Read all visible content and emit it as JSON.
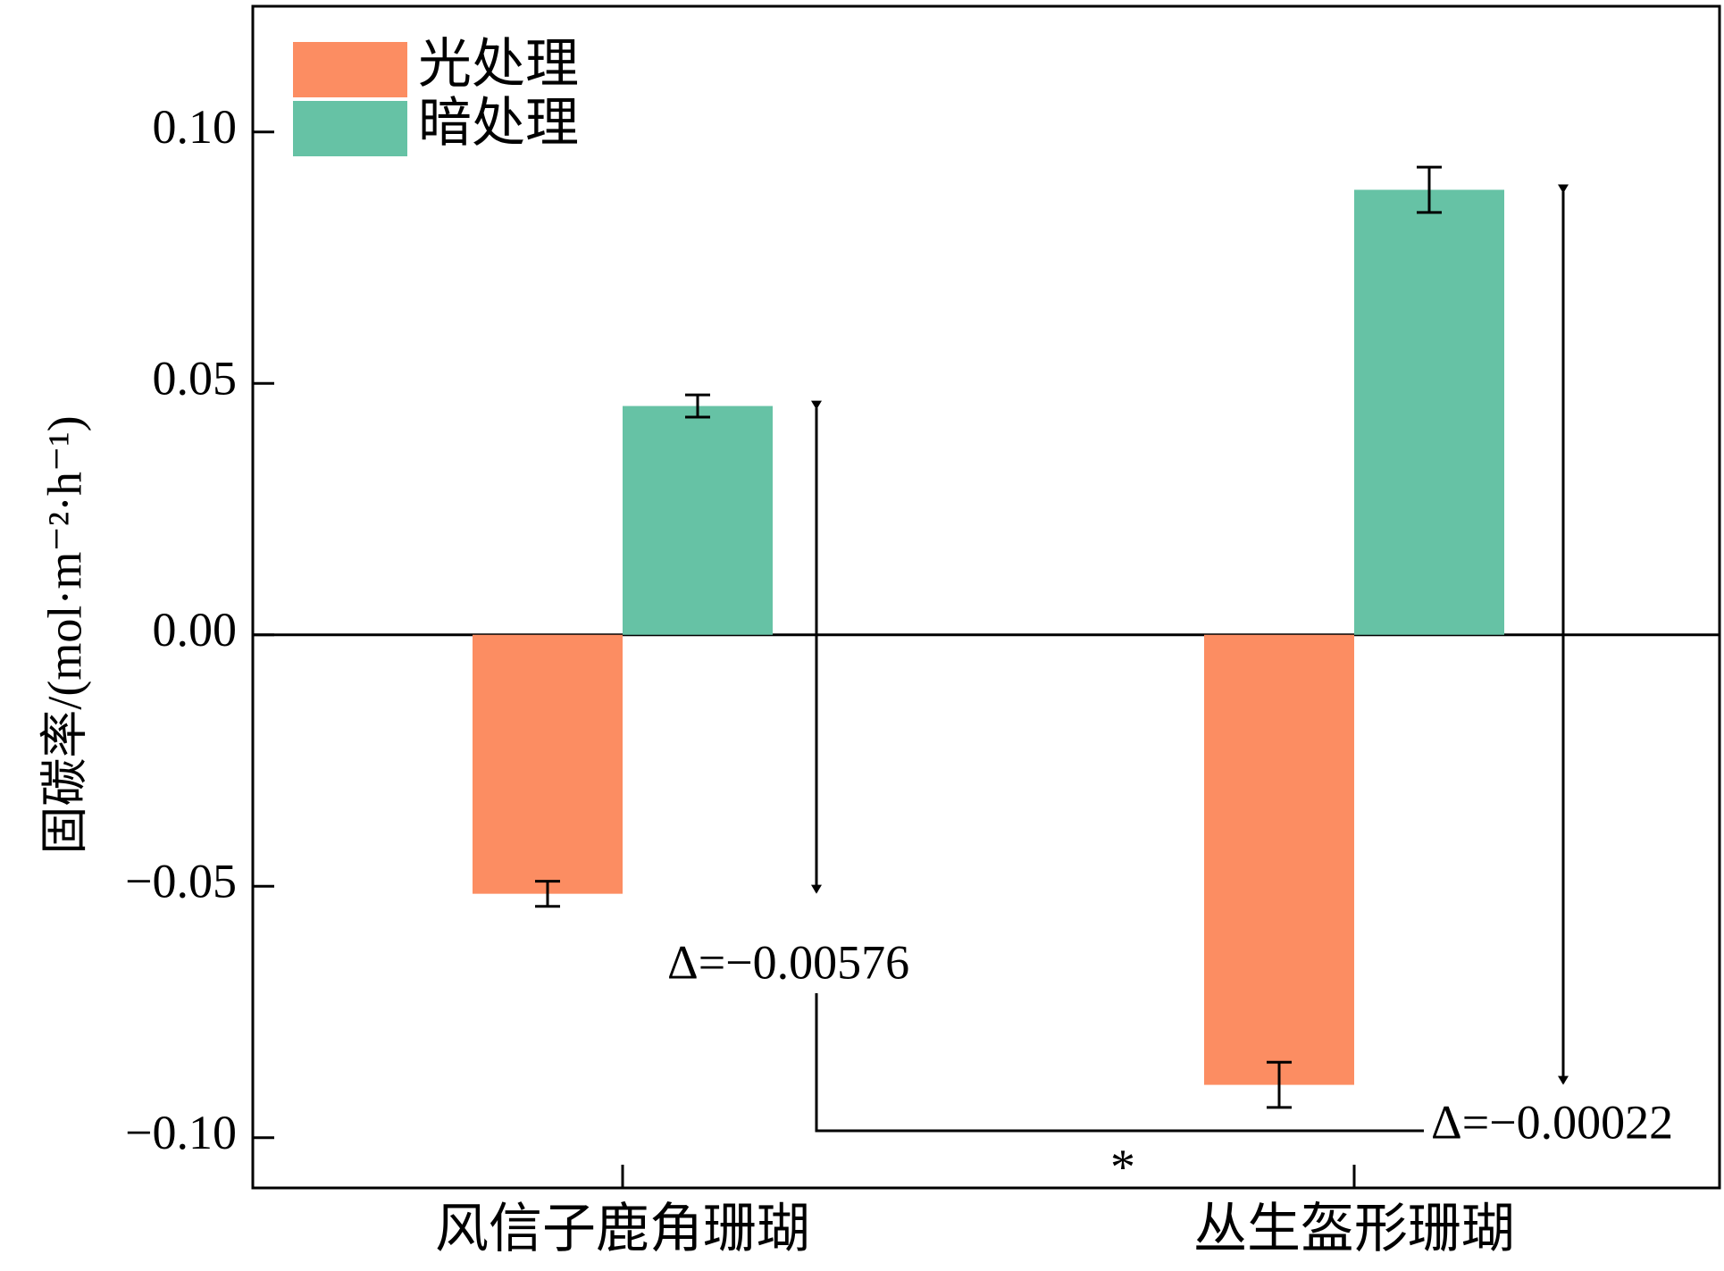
{
  "chart_data": {
    "type": "bar",
    "title": "",
    "xlabel": "",
    "ylabel": "固碳率/(mol·m⁻²·h⁻¹)",
    "ylim": [
      -0.11,
      0.125
    ],
    "yticks": [
      -0.1,
      -0.05,
      0.0,
      0.05,
      0.1
    ],
    "ytick_labels": [
      "−0.10",
      "−0.05",
      "0.00",
      "0.05",
      "0.10"
    ],
    "categories": [
      "风信子鹿角珊瑚",
      "丛生盔形珊瑚"
    ],
    "legend_position": "top-left",
    "grid": false,
    "series": [
      {
        "name": "光处理",
        "color": "#FC8D62",
        "values": [
          -0.0515,
          -0.0895
        ],
        "errors": [
          0.0025,
          0.0045
        ]
      },
      {
        "name": "暗处理",
        "color": "#66C2A5",
        "values": [
          0.0455,
          0.0885
        ],
        "errors": [
          0.0022,
          0.0045
        ]
      }
    ],
    "annotations": [
      {
        "text": "Δ=−0.00576",
        "category": 0
      },
      {
        "text": "Δ=−0.00022",
        "category": 1
      },
      {
        "text": "*",
        "between": [
          0,
          1
        ]
      }
    ]
  }
}
